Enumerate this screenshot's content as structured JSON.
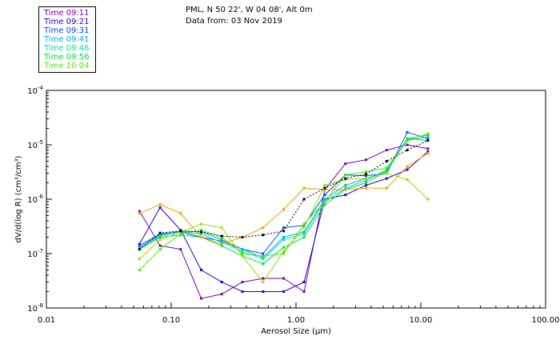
{
  "header": {
    "location": "PML, N 50 22', W 04 08', Alt 0m",
    "date_line": "Data from: 03 Nov 2019"
  },
  "chart_data": {
    "type": "line",
    "xlabel": "Aerosol Size (µm)",
    "ylabel": "dV/d(log R) (cm³/cm³)",
    "xscale": "log",
    "yscale": "log",
    "xlim": [
      0.01,
      100
    ],
    "ylim": [
      1e-08,
      0.0001
    ],
    "grid": false,
    "legend_position": "top-left",
    "x_ticks": [
      {
        "value": 0.01,
        "label": "0.01"
      },
      {
        "value": 0.1,
        "label": "0.10"
      },
      {
        "value": 1,
        "label": "1.00"
      },
      {
        "value": 10,
        "label": "10.00"
      },
      {
        "value": 100,
        "label": "100.00"
      }
    ],
    "y_ticks": [
      {
        "value": 1e-08,
        "mant": "10",
        "exp": "-8"
      },
      {
        "value": 1e-07,
        "mant": "10",
        "exp": "-7"
      },
      {
        "value": 1e-06,
        "mant": "10",
        "exp": "-6"
      },
      {
        "value": 1e-05,
        "mant": "10",
        "exp": "-5"
      },
      {
        "value": 0.0001,
        "mant": "10",
        "exp": "-4"
      }
    ],
    "x": [
      0.0557,
      0.0815,
      0.119,
      0.174,
      0.254,
      0.372,
      0.544,
      0.796,
      1.16,
      1.7,
      2.49,
      3.64,
      5.33,
      7.79,
      11.4
    ],
    "series": [
      {
        "name": "Time 09:11",
        "color": "#7700aa",
        "marker": "square",
        "values": [
          6e-07,
          1.4e-07,
          1.2e-07,
          1.5e-08,
          1.8e-08,
          3e-08,
          3.5e-08,
          3.5e-08,
          2e-08,
          1.5e-06,
          4.5e-06,
          5.3e-06,
          8e-06,
          1e-05,
          8.5e-06
        ]
      },
      {
        "name": "Time 09:21",
        "color": "#2200cc",
        "marker": "square",
        "values": [
          1.5e-07,
          7e-07,
          2.7e-07,
          5e-08,
          3e-08,
          2e-08,
          2e-08,
          2e-08,
          3e-08,
          1e-06,
          1.2e-06,
          1.8e-06,
          2.4e-06,
          3.5e-06,
          7.5e-06
        ]
      },
      {
        "name": "Time 09:31",
        "color": "#0044ff",
        "marker": "square",
        "values": [
          1.4e-07,
          2.3e-07,
          2.5e-07,
          2e-07,
          1.7e-07,
          1.2e-07,
          1e-07,
          3e-07,
          3.3e-07,
          1.2e-06,
          2.8e-06,
          2.7e-06,
          3e-06,
          1.7e-05,
          1.3e-05
        ]
      },
      {
        "name": "Time 09:41",
        "color": "#00aaee",
        "marker": "square",
        "values": [
          1.3e-07,
          2.2e-07,
          2.6e-07,
          2.5e-07,
          1.8e-07,
          1.2e-07,
          8.5e-08,
          2e-07,
          2.5e-07,
          1e-06,
          1.8e-06,
          2.4e-06,
          3.2e-06,
          1.3e-05,
          1.2e-05
        ]
      },
      {
        "name": "Time 09:46",
        "color": "#00ddaa",
        "marker": "square",
        "values": [
          1.2e-07,
          2.1e-07,
          2.5e-07,
          2.3e-07,
          1.6e-07,
          1.1e-07,
          8e-08,
          1.8e-07,
          2.3e-07,
          9e-07,
          1.6e-06,
          2.2e-06,
          3.5e-06,
          1.2e-05,
          1.4e-05
        ]
      },
      {
        "name": "Time 09:56",
        "color": "#00dd44",
        "marker": "square",
        "values": [
          1.2e-07,
          2e-07,
          2.2e-07,
          2e-07,
          1.4e-07,
          9e-08,
          6.5e-08,
          1.3e-07,
          2e-07,
          8e-07,
          1.5e-06,
          2e-06,
          3.3e-06,
          1.3e-05,
          1.5e-05
        ]
      },
      {
        "name": "Time 10:04",
        "color": "#44ee00",
        "marker": "square",
        "values": [
          5e-08,
          1.2e-07,
          2.3e-07,
          2.7e-07,
          2e-07,
          1e-07,
          9e-08,
          1e-07,
          3.5e-07,
          9e-07,
          2.8e-06,
          3.2e-06,
          3.8e-06,
          1.2e-05,
          1.6e-05
        ]
      },
      {
        "name": "",
        "color": "#99dd00",
        "marker": "square",
        "values": [
          8e-08,
          1.8e-07,
          2.5e-07,
          3.5e-07,
          3e-07,
          9e-08,
          3e-08,
          1.1e-07,
          3e-07,
          1.8e-06,
          2.3e-06,
          2.4e-06,
          3e-06,
          2.3e-06,
          1e-06
        ]
      },
      {
        "name": "",
        "color": "#ff9900",
        "marker": "square",
        "values": [
          5.5e-07,
          8e-07,
          5.5e-07,
          2e-07,
          1.5e-07,
          2e-07,
          3e-07,
          6.5e-07,
          1.6e-06,
          1.5e-06,
          1.5e-06,
          1.6e-06,
          1.6e-06,
          4e-06,
          7e-06
        ]
      },
      {
        "name": "",
        "color": "#000000",
        "marker": "dash",
        "values": [
          1.2e-07,
          2.4e-07,
          2.6e-07,
          2.5e-07,
          2.1e-07,
          2e-07,
          2.2e-07,
          2.6e-07,
          1e-06,
          1.6e-06,
          2.4e-06,
          2.9e-06,
          5e-06,
          8e-06,
          1.2e-05
        ]
      }
    ]
  }
}
